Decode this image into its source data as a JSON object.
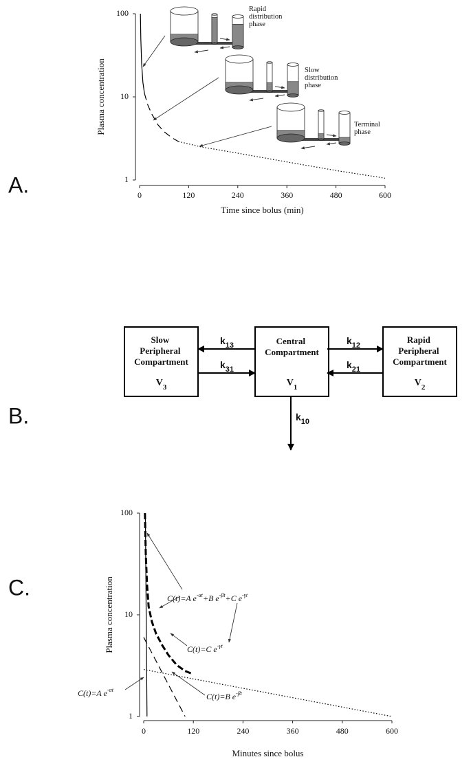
{
  "panel_labels": [
    "A.",
    "B.",
    "C."
  ],
  "chart_data": [
    {
      "type": "line",
      "xlabel": "Time since bolus (min)",
      "ylabel": "Plasma concentration",
      "yscale": "log",
      "xlim": [
        0,
        600
      ],
      "ylim": [
        1,
        100
      ],
      "xticks": [
        0,
        120,
        240,
        360,
        480,
        600
      ],
      "yticks": [
        1,
        10,
        100
      ],
      "series": [
        {
          "style": "solid",
          "color": "#000000",
          "x": [
            2,
            3,
            5,
            8,
            12
          ],
          "values": [
            100,
            50,
            25,
            15,
            11
          ]
        },
        {
          "style": "dashed",
          "color": "#000000",
          "x": [
            12,
            20,
            30,
            45,
            60,
            80,
            95
          ],
          "values": [
            11,
            8,
            6.2,
            4.6,
            3.8,
            3.2,
            2.9
          ]
        },
        {
          "style": "dotted",
          "color": "#000000",
          "x": [
            95,
            150,
            240,
            360,
            480,
            600
          ],
          "values": [
            2.9,
            2.5,
            2.1,
            1.65,
            1.3,
            1.05
          ]
        }
      ],
      "annotations": [
        {
          "parts": [
            "Rapid distribution phase"
          ]
        },
        {
          "parts": [
            "Slow distribution phase"
          ]
        },
        {
          "parts": [
            "Terminal phase"
          ]
        }
      ]
    },
    {
      "type": "line",
      "xlabel": "Minutes since bolus",
      "ylabel": "Plasma concentration",
      "yscale": "log",
      "xlim": [
        0,
        600
      ],
      "ylim": [
        1,
        100
      ],
      "xticks": [
        0,
        120,
        240,
        360,
        480,
        600
      ],
      "yticks": [
        1,
        10,
        100
      ],
      "series": [
        {
          "style": "solid",
          "color": "#000000",
          "x": [
            4,
            8
          ],
          "values": [
            100,
            1
          ]
        },
        {
          "style": "dashed",
          "color": "#000000",
          "x": [
            0,
            100
          ],
          "values": [
            6,
            1
          ]
        },
        {
          "style": "dotted",
          "color": "#000000",
          "x": [
            0,
            600
          ],
          "values": [
            2.9,
            1
          ]
        },
        {
          "style": "bold-dashed",
          "color": "#000000",
          "x": [
            3,
            5,
            8,
            12,
            20,
            30,
            45,
            60,
            80,
            100,
            120
          ],
          "values": [
            100,
            40,
            20,
            12,
            8.5,
            6.5,
            5,
            4,
            3.2,
            2.8,
            2.6
          ]
        }
      ],
      "annotations": [
        {
          "parts": [
            "C(t)=A e",
            "-αt",
            "+B e",
            "-βt",
            "+C e",
            "-γt"
          ]
        },
        {
          "parts": [
            "C(t)=C e",
            "-γt"
          ]
        },
        {
          "parts": [
            "C(t)=B e",
            "-βt"
          ]
        },
        {
          "parts": [
            "C(t)=A e",
            "-αt"
          ]
        }
      ]
    }
  ],
  "diagram": {
    "compartments": [
      {
        "name": "Slow Peripheral Compartment",
        "volume": "V",
        "index": "3"
      },
      {
        "name": "Central Compartment",
        "volume": "V",
        "index": "1"
      },
      {
        "name": "Rapid Peripheral Compartment",
        "volume": "V",
        "index": "2"
      }
    ],
    "rates": [
      {
        "symbol": "k",
        "index": "13"
      },
      {
        "symbol": "k",
        "index": "31"
      },
      {
        "symbol": "k",
        "index": "12"
      },
      {
        "symbol": "k",
        "index": "21"
      },
      {
        "symbol": "k",
        "index": "10"
      }
    ]
  }
}
